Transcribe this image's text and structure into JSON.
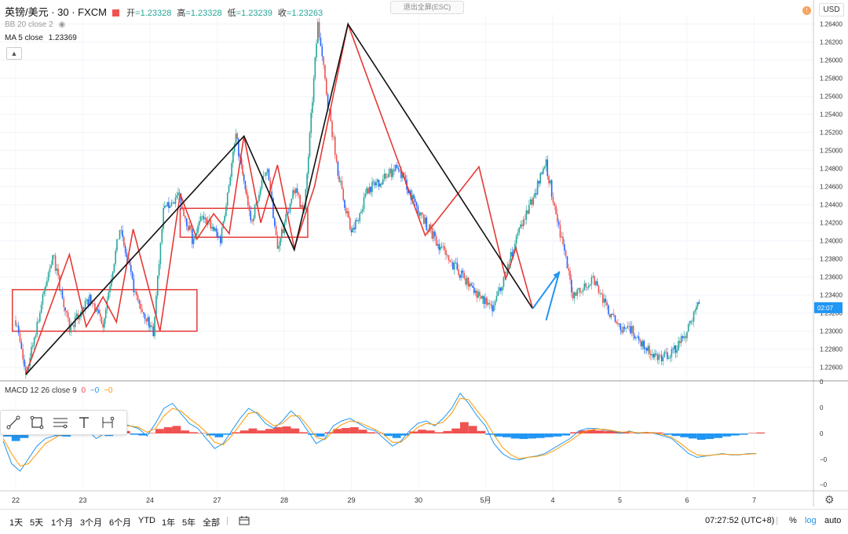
{
  "header": {
    "symbol": "英镑/美元 · 30 · FXCM",
    "open_label": "开",
    "open": "=1.23328",
    "high_label": "高",
    "high": "=1.23328",
    "low_label": "低",
    "low": "=1.23239",
    "close_label": "收",
    "close": "=1.23263",
    "bb_label": "BB 20 close 2",
    "ma_label": "MA 5 close",
    "ma_value": "1.23369"
  },
  "exit_fullscreen": "退出全屏(ESC)",
  "currency": "USD",
  "alert_icon": "alert-icon",
  "collapse_icon": "chevron-up-icon",
  "price_tag": "02:07",
  "macd_label": "MACD 12 26 close 9",
  "macd_values": [
    "0",
    "−0",
    "−0"
  ],
  "toolbar_icons": [
    "trend-line-icon",
    "rectangle-icon",
    "fib-retracement-icon",
    "text-icon",
    "date-range-icon"
  ],
  "bottom": {
    "ranges": [
      "1天",
      "5天",
      "1个月",
      "3个月",
      "6个月",
      "YTD",
      "1年",
      "5年",
      "全部"
    ],
    "calendar_icon": "calendar-icon",
    "clock": "07:27:52 (UTC+8)",
    "percent": "%",
    "log": "log",
    "auto": "auto"
  },
  "colors": {
    "up": "#26a69a",
    "down": "#ef5350",
    "candle_blue": "#2962ff",
    "zigzag_red": "#e53935",
    "trend_black": "#111111",
    "macd_pos": "#ef5350",
    "macd_neg": "#2196f3",
    "signal": "#ff9800",
    "accent": "#2196f3"
  },
  "chart_data": {
    "type": "line",
    "title": "",
    "xlabel": "",
    "ylabel": "",
    "x_ticks": [
      "22",
      "23",
      "24",
      "27",
      "28",
      "29",
      "30",
      "5月",
      "4",
      "5",
      "6",
      "7"
    ],
    "y_ticks": [
      "1.26400",
      "1.26200",
      "1.26000",
      "1.25800",
      "1.25600",
      "1.25400",
      "1.25200",
      "1.25000",
      "1.24800",
      "1.24600",
      "1.24400",
      "1.24200",
      "1.24000",
      "1.23800",
      "1.23600",
      "1.23400",
      "1.23200",
      "1.23000",
      "1.22800",
      "1.22600"
    ],
    "ylim": [
      1.2245,
      1.2651
    ],
    "macd_ticks": [
      "0",
      "0",
      "0",
      "−0",
      "−0"
    ],
    "series": [
      {
        "name": "",
        "x": [
          0.0,
          0.15,
          0.55,
          0.8,
          1.1,
          1.3,
          1.55,
          1.8,
          2.05,
          2.2,
          2.42,
          2.63,
          2.8,
          3.05,
          3.28,
          3.5,
          3.75,
          3.9,
          4.15,
          4.3,
          4.5,
          4.65,
          4.8,
          5.0,
          5.25,
          5.45,
          5.7,
          5.95,
          6.1,
          6.45,
          7.1,
          7.5,
          7.9,
          8.3,
          8.6,
          8.85,
          9.05,
          9.2,
          9.4,
          9.6,
          9.75,
          9.85,
          10.0,
          10.2
        ],
        "values": [
          1.2312,
          1.2252,
          1.2385,
          1.2302,
          1.2335,
          1.231,
          1.2413,
          1.2335,
          1.23,
          1.2432,
          1.2452,
          1.2402,
          1.2428,
          1.2402,
          1.2516,
          1.242,
          1.2484,
          1.239,
          1.2458,
          1.2432,
          1.264,
          1.2552,
          1.2478,
          1.2406,
          1.2458,
          1.2468,
          1.2482,
          1.244,
          1.242,
          1.2379,
          1.2323,
          1.241,
          1.2485,
          1.234,
          1.2358,
          1.2318,
          1.23,
          1.23,
          1.228,
          1.227,
          1.2275,
          1.2282,
          1.23,
          1.2335
        ]
      }
    ],
    "zigzag_red": [
      [
        0.15,
        1.2252
      ],
      [
        0.8,
        1.2385
      ],
      [
        1.05,
        1.2305
      ],
      [
        1.3,
        1.2338
      ],
      [
        1.5,
        1.231
      ],
      [
        1.75,
        1.2413
      ],
      [
        2.15,
        1.23
      ],
      [
        2.45,
        1.2452
      ],
      [
        2.7,
        1.2402
      ],
      [
        2.95,
        1.243
      ],
      [
        3.18,
        1.2408
      ],
      [
        3.4,
        1.2516
      ],
      [
        3.65,
        1.242
      ],
      [
        3.9,
        1.2484
      ],
      [
        4.15,
        1.2392
      ],
      [
        4.45,
        1.246
      ],
      [
        4.95,
        1.264
      ],
      [
        6.1,
        1.2406
      ],
      [
        6.9,
        1.2482
      ],
      [
        7.3,
        1.2358
      ],
      [
        7.45,
        1.2392
      ],
      [
        7.7,
        1.2325
      ]
    ],
    "zigzag_black": [
      [
        0.15,
        1.2252
      ],
      [
        3.4,
        1.2516
      ],
      [
        4.15,
        1.239
      ],
      [
        4.95,
        1.264
      ],
      [
        7.7,
        1.2325
      ]
    ],
    "boxes": [
      {
        "x": [
          -0.05,
          2.7
        ],
        "y": [
          1.23,
          1.2346
        ]
      },
      {
        "x": [
          2.45,
          4.35
        ],
        "y": [
          1.2404,
          1.2436
        ]
      }
    ],
    "projection": {
      "x": [
        7.7,
        8.1,
        7.9
      ],
      "y": [
        1.2325,
        1.2366,
        1.2312
      ]
    },
    "macd_hist": [
      -0.12,
      -0.3,
      -0.18,
      -0.05,
      0.05,
      -0.02,
      -0.1,
      -0.12,
      -0.05,
      0.04,
      0.08,
      -0.05,
      -0.1,
      0.06,
      0.1,
      -0.05,
      -0.08,
      0.02,
      0.18,
      0.25,
      0.3,
      0.12,
      0.05,
      0.02,
      -0.08,
      -0.15,
      -0.05,
      0.05,
      0.12,
      0.2,
      0.12,
      0.18,
      0.25,
      0.28,
      0.2,
      0.05,
      -0.05,
      -0.12,
      0.05,
      0.18,
      0.22,
      0.25,
      0.15,
      0.05,
      0.02,
      -0.1,
      -0.18,
      -0.08,
      0.08,
      0.15,
      0.12,
      0.05,
      0.1,
      0.2,
      0.45,
      0.3,
      0.1,
      -0.05,
      -0.12,
      -0.15,
      -0.2,
      -0.22,
      -0.2,
      -0.18,
      -0.15,
      -0.12,
      -0.08,
      0.05,
      0.12,
      0.15,
      0.12,
      0.1,
      0.08,
      0.05,
      0.02,
      0.04,
      0.05,
      0.04,
      -0.05,
      -0.1,
      -0.15,
      -0.2,
      -0.25,
      -0.22,
      -0.18,
      -0.12,
      -0.08,
      -0.05,
      0.02,
      0.04
    ],
    "macd_line": [
      -0.3,
      -1.2,
      -1.5,
      -1.0,
      -0.5,
      -0.2,
      -0.1,
      0.1,
      0.2,
      0.3,
      0.1,
      -0.2,
      0.0,
      0.2,
      0.4,
      0.3,
      0.2,
      -0.1,
      0.4,
      1.0,
      1.2,
      0.8,
      0.4,
      0.2,
      -0.2,
      -0.6,
      -0.4,
      0.1,
      0.6,
      1.0,
      0.8,
      0.4,
      0.2,
      0.5,
      0.9,
      0.6,
      0.1,
      -0.4,
      -0.2,
      0.3,
      0.5,
      0.6,
      0.4,
      0.2,
      0.1,
      -0.2,
      -0.5,
      -0.3,
      0.1,
      0.4,
      0.5,
      0.3,
      0.6,
      1.0,
      1.6,
      1.2,
      0.7,
      0.3,
      -0.4,
      -0.8,
      -1.0,
      -1.05,
      -0.95,
      -0.9,
      -0.8,
      -0.6,
      -0.4,
      -0.2,
      0.1,
      0.2,
      0.2,
      0.15,
      0.1,
      0.0,
      0.1,
      0.0,
      0.05,
      0.0,
      -0.1,
      -0.2,
      -0.5,
      -0.8,
      -0.95,
      -0.9,
      -0.85,
      -0.8,
      -0.85,
      -0.85,
      -0.8,
      -0.8
    ],
    "signal_line": [
      -0.2,
      -0.8,
      -1.3,
      -1.2,
      -0.8,
      -0.4,
      -0.2,
      0.0,
      0.1,
      0.2,
      0.15,
      0.0,
      0.0,
      0.1,
      0.3,
      0.3,
      0.25,
      0.05,
      0.2,
      0.7,
      1.0,
      0.9,
      0.6,
      0.35,
      0.05,
      -0.35,
      -0.45,
      -0.1,
      0.35,
      0.8,
      0.85,
      0.55,
      0.3,
      0.4,
      0.7,
      0.7,
      0.3,
      -0.15,
      -0.25,
      0.1,
      0.35,
      0.5,
      0.45,
      0.3,
      0.15,
      -0.05,
      -0.35,
      -0.35,
      -0.05,
      0.25,
      0.4,
      0.35,
      0.45,
      0.8,
      1.4,
      1.35,
      0.9,
      0.5,
      -0.05,
      -0.55,
      -0.85,
      -1.0,
      -0.95,
      -0.92,
      -0.85,
      -0.7,
      -0.5,
      -0.3,
      -0.05,
      0.1,
      0.18,
      0.17,
      0.12,
      0.05,
      0.07,
      0.03,
      0.04,
      0.02,
      -0.05,
      -0.15,
      -0.38,
      -0.65,
      -0.85,
      -0.88,
      -0.85,
      -0.82,
      -0.84,
      -0.84,
      -0.82,
      -0.8
    ]
  }
}
